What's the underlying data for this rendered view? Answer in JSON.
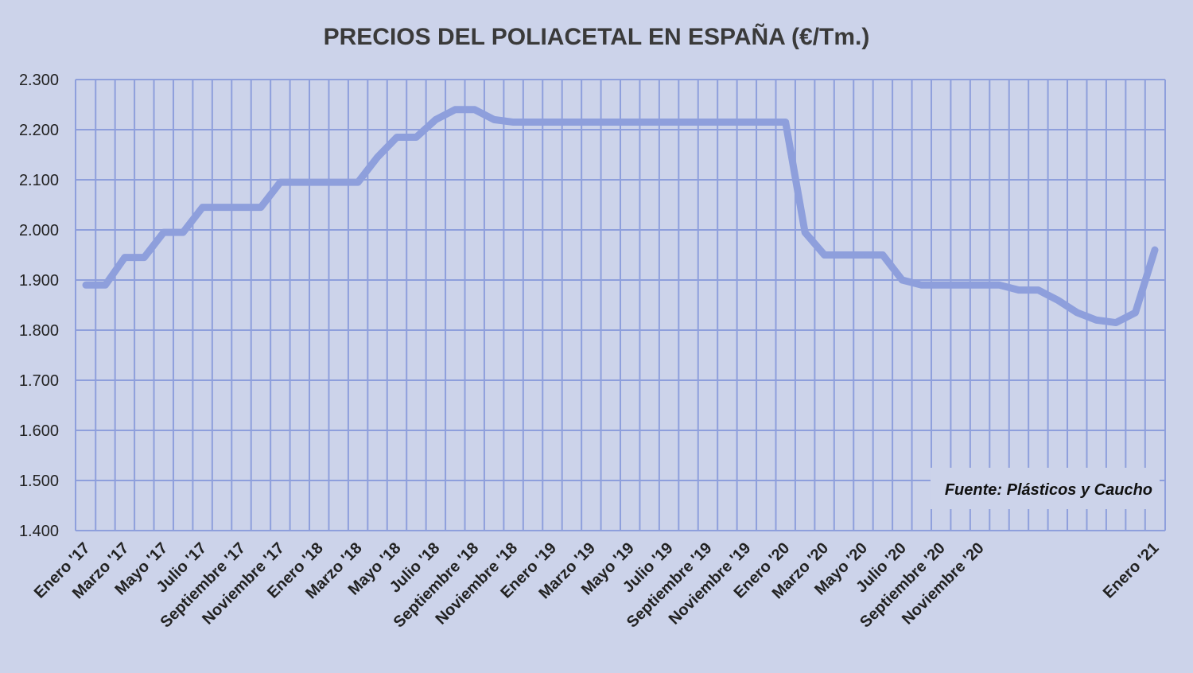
{
  "chart_data": {
    "type": "line",
    "title": "PRECIOS DEL POLIACETAL  EN ESPAÑA (€/Tm.)",
    "source_note": "Fuente: Plásticos y Caucho",
    "xlabel": "",
    "ylabel": "",
    "ylim": [
      1400,
      2300
    ],
    "y_ticks": [
      "1.400",
      "1.500",
      "1.600",
      "1.700",
      "1.800",
      "1.900",
      "2.000",
      "2.100",
      "2.200",
      "2.300"
    ],
    "x_tick_labels": [
      "Enero '17",
      "Marzo '17",
      "Mayo '17",
      "Julio '17",
      "Septiembre '17",
      "Noviembre '17",
      "Enero '18",
      "Marzo '18",
      "Mayo '18",
      "Julio '18",
      "Septiembre '18",
      "Noviembre '18",
      "Enero '19",
      "Marzo '19",
      "Mayo '19",
      "Julio '19",
      "Septiembre '19",
      "Noviembre '19",
      "Enero '20",
      "Marzo '20",
      "Mayo '20",
      "Julio '20",
      "Septiembre '20",
      "Noviembre '20",
      "Enero '21"
    ],
    "grid": true,
    "series": [
      {
        "color": "#8e9fdc",
        "values": [
          1890,
          1890,
          1945,
          1945,
          1995,
          1995,
          2045,
          2045,
          2045,
          2045,
          2095,
          2095,
          2095,
          2095,
          2095,
          2145,
          2185,
          2185,
          2220,
          2240,
          2240,
          2220,
          2215,
          2215,
          2215,
          2215,
          2215,
          2215,
          2215,
          2215,
          2215,
          2215,
          2215,
          2215,
          2215,
          2215,
          2215,
          1995,
          1950,
          1950,
          1950,
          1950,
          1900,
          1890,
          1890,
          1890,
          1890,
          1890,
          1880,
          1880,
          1860,
          1835,
          1820,
          1815,
          1835,
          1960
        ]
      }
    ]
  }
}
